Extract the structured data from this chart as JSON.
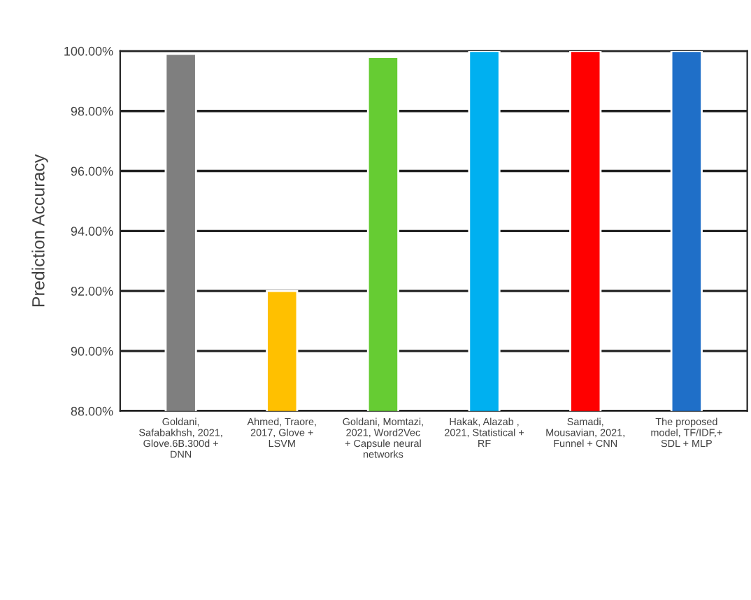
{
  "chart_data": {
    "type": "bar",
    "ylabel": "Prediction Accuracy",
    "categories": [
      "Goldani,\nSafabakhsh, 2021,\nGlove.6B.300d +\nDNN",
      "Ahmed, Traore,\n2017, Glove +\nLSVM",
      "Goldani, Momtazi,\n2021, Word2Vec\n+ Capsule neural\nnetworks",
      "Hakak, Alazab ,\n2021, Statistical +\nRF",
      "Samadi,\nMousavian, 2021,\nFunnel + CNN",
      "The proposed\nmodel, TF/IDF,+\nSDL + MLP"
    ],
    "values": [
      99.9,
      92.0,
      99.8,
      100.0,
      100.0,
      100.0
    ],
    "colors": [
      "#7f7f7f",
      "#ffc000",
      "#66cc33",
      "#00b0f0",
      "#ff0000",
      "#1f6fc8"
    ],
    "ylim": [
      88,
      100
    ],
    "yticks": [
      {
        "value": 88,
        "label": "88.00%"
      },
      {
        "value": 90,
        "label": "90.00%"
      },
      {
        "value": 92,
        "label": "92.00%"
      },
      {
        "value": 94,
        "label": "94.00%"
      },
      {
        "value": 96,
        "label": "96.00%"
      },
      {
        "value": 98,
        "label": "98.00%"
      },
      {
        "value": 100,
        "label": "100.00%"
      }
    ],
    "grid": "y",
    "legend": false
  }
}
